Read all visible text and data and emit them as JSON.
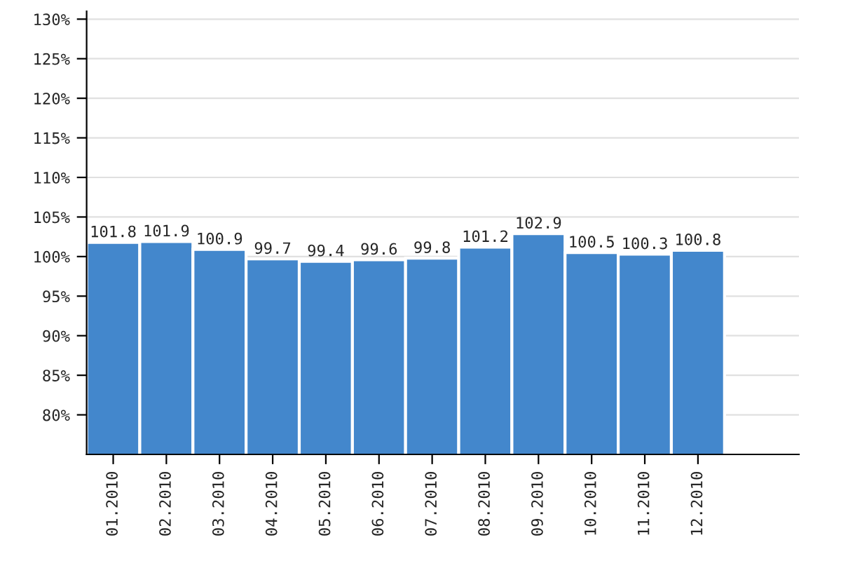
{
  "chart_data": {
    "type": "bar",
    "categories": [
      "01.2010",
      "02.2010",
      "03.2010",
      "04.2010",
      "05.2010",
      "06.2010",
      "07.2010",
      "08.2010",
      "09.2010",
      "10.2010",
      "11.2010",
      "12.2010"
    ],
    "values": [
      101.8,
      101.9,
      100.9,
      99.7,
      99.4,
      99.6,
      99.8,
      101.2,
      102.9,
      100.5,
      100.3,
      100.8
    ],
    "color": "#4387cc",
    "ylim": [
      75,
      131
    ],
    "yticks": [
      {
        "value": 80,
        "label": "80%"
      },
      {
        "value": 85,
        "label": "85%"
      },
      {
        "value": 90,
        "label": "90%"
      },
      {
        "value": 95,
        "label": "95%"
      },
      {
        "value": 100,
        "label": "100%"
      },
      {
        "value": 105,
        "label": "105%"
      },
      {
        "value": 110,
        "label": "110%"
      },
      {
        "value": 115,
        "label": "115%"
      },
      {
        "value": 120,
        "label": "120%"
      },
      {
        "value": 125,
        "label": "125%"
      },
      {
        "value": 130,
        "label": "130%"
      }
    ],
    "grid": "y",
    "data_labels": true
  }
}
